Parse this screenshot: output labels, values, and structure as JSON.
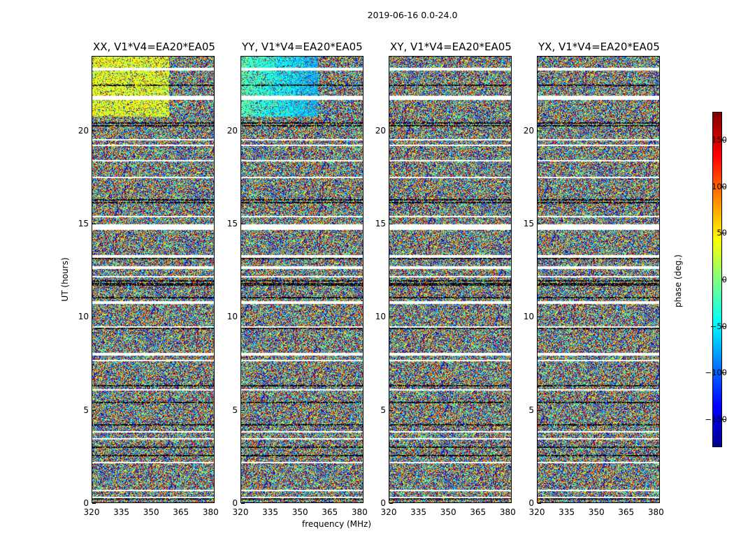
{
  "chart_data": {
    "type": "heatmap",
    "title": "2019-06-16 0.0-24.0",
    "xlabel": "frequency (MHz)",
    "ylabel": "UT (hours)",
    "xlim": [
      320,
      382
    ],
    "ylim": [
      0,
      24
    ],
    "xticks": [
      "320",
      "335",
      "350",
      "365",
      "380"
    ],
    "yticks": [
      "0",
      "5",
      "10",
      "15",
      "20"
    ],
    "colorbar": {
      "label": "phase (deg.)",
      "range": [
        -180,
        180
      ],
      "ticks": [
        "150",
        "100",
        "50",
        "0",
        "−50",
        "−100",
        "−150"
      ],
      "colormap": "jet"
    },
    "panels": [
      {
        "name": "XX",
        "title": "XX, V1*V4=EA20*EA05"
      },
      {
        "name": "YY",
        "title": "YY, V1*V4=EA20*EA05"
      },
      {
        "name": "XY",
        "title": "XY, V1*V4=EA20*EA05"
      },
      {
        "name": "YX",
        "title": "YX, V1*V4=EA20*EA05"
      }
    ]
  }
}
